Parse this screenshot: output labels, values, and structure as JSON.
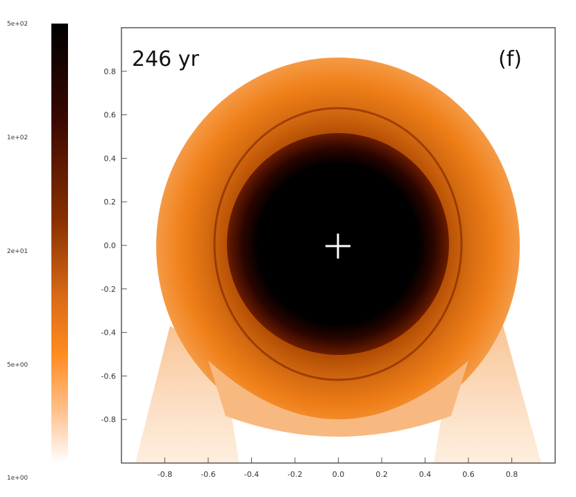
{
  "chart_data": {
    "type": "heatmap",
    "time_label": "246 yr",
    "panel_label": "(f)",
    "xlim": [
      -1.0,
      1.0
    ],
    "ylim": [
      -1.0,
      1.0
    ],
    "x_ticks": [
      "-0.8",
      "-0.6",
      "-0.4",
      "-0.2",
      "0.0",
      "0.2",
      "0.4",
      "0.6",
      "0.8"
    ],
    "y_ticks": [
      "0.8",
      "0.6",
      "0.4",
      "0.2",
      "0.0",
      "-0.2",
      "-0.4",
      "-0.6",
      "-0.8"
    ],
    "colorbar": {
      "scale": "log",
      "range": [
        1,
        500
      ],
      "ticks": [
        "5e+02",
        "1e+02",
        "2e+01",
        "5e+00",
        "1e+00"
      ],
      "colors": [
        "#000000",
        "#3a0800",
        "#7a2500",
        "#c25a10",
        "#ff8a1e",
        "#ffb066",
        "#ffffff"
      ]
    },
    "center_marker": {
      "x": 0.0,
      "y": 0.0,
      "symbol": "+"
    },
    "features": {
      "core_radius": 0.46,
      "shell_outer_radius": 0.86,
      "shell_bottom_extent": -0.88
    }
  }
}
